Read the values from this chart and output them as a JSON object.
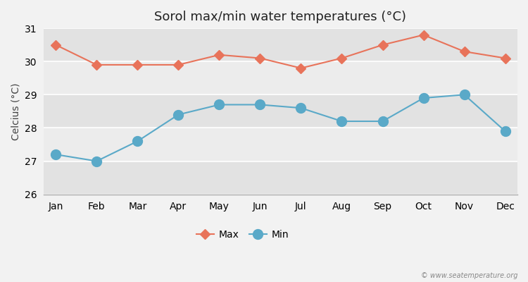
{
  "title": "Sorol max/min water temperatures (°C)",
  "ylabel": "Celcius (°C)",
  "months": [
    "Jan",
    "Feb",
    "Mar",
    "Apr",
    "May",
    "Jun",
    "Jul",
    "Aug",
    "Sep",
    "Oct",
    "Nov",
    "Dec"
  ],
  "max_temps": [
    30.5,
    29.9,
    29.9,
    29.9,
    30.2,
    30.1,
    29.8,
    30.1,
    30.5,
    30.8,
    30.3,
    30.1
  ],
  "min_temps": [
    27.2,
    27.0,
    27.6,
    28.4,
    28.7,
    28.7,
    28.6,
    28.2,
    28.2,
    28.9,
    29.0,
    27.9
  ],
  "max_color": "#e8735a",
  "min_color": "#5aa9c8",
  "background_color": "#f2f2f2",
  "band_light": "#ececec",
  "band_dark": "#e2e2e2",
  "ylim": [
    26,
    31
  ],
  "yticks": [
    26,
    27,
    28,
    29,
    30,
    31
  ],
  "watermark": "© www.seatemperature.org",
  "legend_max": "Max",
  "legend_min": "Min",
  "title_fontsize": 13,
  "axis_fontsize": 10,
  "tick_fontsize": 10,
  "marker_size_max": 7,
  "marker_size_min": 10,
  "linewidth": 1.5
}
